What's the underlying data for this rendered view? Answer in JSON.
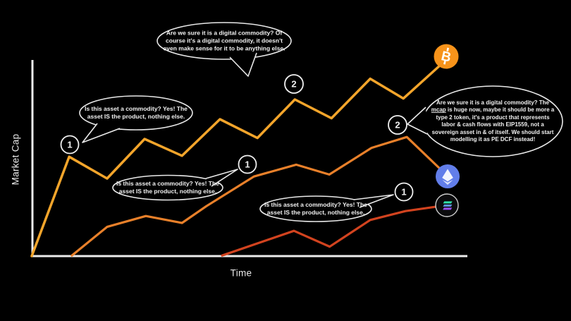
{
  "chart_data": {
    "type": "line",
    "title": "",
    "xlabel": "Time",
    "ylabel": "Market Cap",
    "x_range": [
      0,
      100
    ],
    "y_range": [
      0,
      100
    ],
    "grid": false,
    "tick_labels": false,
    "legend": "coin logos at line endpoints",
    "series": [
      {
        "name": "Bitcoin",
        "color": "#f3a52b",
        "end_icon": "bitcoin-logo",
        "points": [
          [
            0,
            0.7
          ],
          [
            8.6,
            51
          ],
          [
            17.3,
            40
          ],
          [
            25.9,
            60
          ],
          [
            34.5,
            51.5
          ],
          [
            43.2,
            70
          ],
          [
            51.8,
            60.5
          ],
          [
            60.4,
            80
          ],
          [
            68.8,
            70.5
          ],
          [
            77.7,
            90.5
          ],
          [
            85.3,
            80.5
          ],
          [
            95.1,
            100
          ]
        ]
      },
      {
        "name": "Ethereum",
        "color": "#e8802a",
        "end_icon": "ethereum-logo",
        "points": [
          [
            9.2,
            1
          ],
          [
            17.3,
            15.5
          ],
          [
            26.2,
            21
          ],
          [
            34.5,
            17.5
          ],
          [
            40.1,
            26
          ],
          [
            51,
            41
          ],
          [
            60.7,
            47
          ],
          [
            68.3,
            42
          ],
          [
            78,
            55.5
          ],
          [
            86.1,
            61
          ],
          [
            95.1,
            42
          ]
        ]
      },
      {
        "name": "Solana",
        "color": "#d2431f",
        "end_icon": "solana-logo",
        "points": [
          [
            43.7,
            1
          ],
          [
            60.2,
            13.5
          ],
          [
            68.4,
            5.5
          ],
          [
            77.7,
            19
          ],
          [
            85.8,
            23.5
          ],
          [
            95.3,
            26.5
          ]
        ]
      }
    ]
  },
  "axes": {
    "ylabel": "Market Cap",
    "xlabel": "Time"
  },
  "bubbles": [
    {
      "id": "top",
      "text": "Are we sure it is a digital commodity? Of course it's a digital commodity, it doesn't even make sense for it to be anything else."
    },
    {
      "id": "left",
      "text": "Is this asset a commodity? Yes! The asset IS the product, nothing else."
    },
    {
      "id": "middle",
      "text": "Is this asset a commodity? Yes! The asset IS the product, nothing else."
    },
    {
      "id": "bottom",
      "text": "Is this asset a commodity? Yes! The asset IS the product, nothing else."
    },
    {
      "id": "right",
      "pre": "Are we sure it is a digital commodity? The ",
      "underlined": "mcap",
      "post": " is huge now, maybe it should be more a type 2 token, it's a product that represents labor & cash flows with EIP1559, not a sovereign asset in & of itself. We should start modelling it as PE DCF instead!"
    }
  ],
  "markers": [
    {
      "name": "bitcoin-stage-1",
      "label": "1"
    },
    {
      "name": "bitcoin-stage-2",
      "label": "2"
    },
    {
      "name": "ethereum-stage-1",
      "label": "1"
    },
    {
      "name": "ethereum-stage-2",
      "label": "2"
    },
    {
      "name": "solana-stage-1",
      "label": "1"
    }
  ],
  "icons": {
    "bitcoin": {
      "symbol": "B",
      "bg": "#f7931a"
    },
    "ethereum": {
      "bg": "#627eea"
    },
    "solana": {
      "bg": "#0b0b0d",
      "bar_top": "#2fe0a8",
      "bar_mid": "#5e93de",
      "bar_bottom": "#9a50f5"
    }
  },
  "colors": {
    "axis": "#ececec",
    "background": "#000000",
    "bubble_stroke": "#e9e9e9"
  }
}
